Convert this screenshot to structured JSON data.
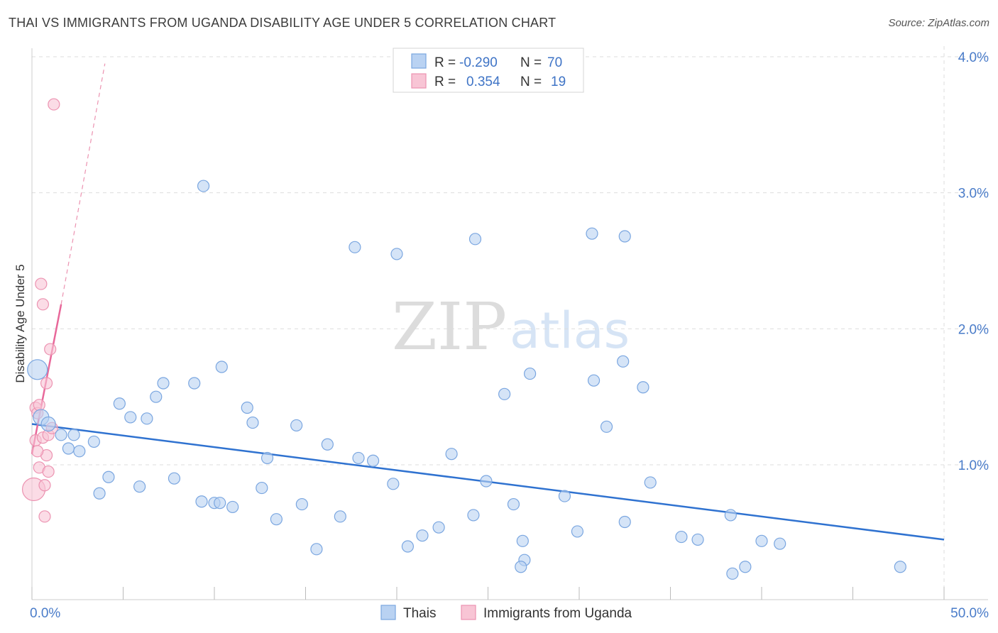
{
  "header": {
    "title": "THAI VS IMMIGRANTS FROM UGANDA DISABILITY AGE UNDER 5 CORRELATION CHART",
    "source": "Source: ZipAtlas.com"
  },
  "watermark": {
    "zip": "ZIP",
    "atlas": "atlas"
  },
  "colors": {
    "thais_fill": "#b9d2f2",
    "thais_stroke": "#7aa6e0",
    "thais_line": "#2f72d0",
    "uganda_fill": "#f8c5d5",
    "uganda_stroke": "#ec93b1",
    "uganda_line": "#e8689a",
    "grid": "#dddddd",
    "tick_text": "#4a7cc9"
  },
  "legend": {
    "rows": [
      {
        "r_label": "R =",
        "r_value": "-0.290",
        "n_label": "N =",
        "n_value": "70"
      },
      {
        "r_label": "R =",
        "r_value": "0.354",
        "n_label": "N =",
        "n_value": "19"
      }
    ]
  },
  "chart_data": {
    "type": "scatter",
    "title": "THAI VS IMMIGRANTS FROM UGANDA DISABILITY AGE UNDER 5 CORRELATION CHART",
    "xlabel": "",
    "ylabel": "Disability Age Under 5",
    "xlim": [
      0,
      50
    ],
    "ylim": [
      0,
      4.1
    ],
    "x_tick_labels": [
      "0.0%",
      "50.0%"
    ],
    "y_ticks": [
      1,
      2,
      3,
      4
    ],
    "y_tick_labels": [
      "1.0%",
      "2.0%",
      "3.0%",
      "4.0%"
    ],
    "legend_position": "bottom-center",
    "series": [
      {
        "name": "Thais",
        "r": -0.29,
        "n": 70,
        "trend": {
          "x": [
            0,
            50
          ],
          "y": [
            1.3,
            0.45
          ]
        },
        "points": [
          {
            "x": 0.3,
            "y": 1.7,
            "s": 14
          },
          {
            "x": 0.5,
            "y": 1.35,
            "s": 11
          },
          {
            "x": 0.9,
            "y": 1.3,
            "s": 10
          },
          {
            "x": 2.3,
            "y": 1.22
          },
          {
            "x": 1.6,
            "y": 1.22
          },
          {
            "x": 2.0,
            "y": 1.12
          },
          {
            "x": 2.6,
            "y": 1.1
          },
          {
            "x": 3.4,
            "y": 1.17
          },
          {
            "x": 3.7,
            "y": 0.79
          },
          {
            "x": 4.2,
            "y": 0.91
          },
          {
            "x": 4.8,
            "y": 1.45
          },
          {
            "x": 5.4,
            "y": 1.35
          },
          {
            "x": 5.9,
            "y": 0.84
          },
          {
            "x": 6.3,
            "y": 1.34
          },
          {
            "x": 6.8,
            "y": 1.5
          },
          {
            "x": 7.2,
            "y": 1.6
          },
          {
            "x": 7.8,
            "y": 0.9
          },
          {
            "x": 8.9,
            "y": 1.6
          },
          {
            "x": 9.3,
            "y": 0.73
          },
          {
            "x": 10.0,
            "y": 0.72
          },
          {
            "x": 10.4,
            "y": 1.72
          },
          {
            "x": 10.3,
            "y": 0.72
          },
          {
            "x": 11.0,
            "y": 0.69
          },
          {
            "x": 11.8,
            "y": 1.42
          },
          {
            "x": 12.1,
            "y": 1.31
          },
          {
            "x": 12.6,
            "y": 0.83
          },
          {
            "x": 12.9,
            "y": 1.05
          },
          {
            "x": 13.4,
            "y": 0.6
          },
          {
            "x": 14.5,
            "y": 1.29
          },
          {
            "x": 14.8,
            "y": 0.71
          },
          {
            "x": 15.6,
            "y": 0.38
          },
          {
            "x": 16.2,
            "y": 1.15
          },
          {
            "x": 16.9,
            "y": 0.62
          },
          {
            "x": 17.9,
            "y": 1.05
          },
          {
            "x": 18.7,
            "y": 1.03
          },
          {
            "x": 19.8,
            "y": 0.86
          },
          {
            "x": 20.6,
            "y": 0.4
          },
          {
            "x": 21.4,
            "y": 0.48
          },
          {
            "x": 22.3,
            "y": 0.54
          },
          {
            "x": 23.0,
            "y": 1.08
          },
          {
            "x": 24.2,
            "y": 0.63
          },
          {
            "x": 24.9,
            "y": 0.88
          },
          {
            "x": 25.9,
            "y": 1.52
          },
          {
            "x": 26.4,
            "y": 0.71
          },
          {
            "x": 26.9,
            "y": 0.44
          },
          {
            "x": 27.0,
            "y": 0.3
          },
          {
            "x": 27.3,
            "y": 1.67
          },
          {
            "x": 29.2,
            "y": 0.77
          },
          {
            "x": 29.9,
            "y": 0.51
          },
          {
            "x": 30.8,
            "y": 1.62
          },
          {
            "x": 31.5,
            "y": 1.28
          },
          {
            "x": 32.4,
            "y": 1.76
          },
          {
            "x": 33.5,
            "y": 1.57
          },
          {
            "x": 33.9,
            "y": 0.87
          },
          {
            "x": 35.6,
            "y": 0.47
          },
          {
            "x": 36.5,
            "y": 0.45
          },
          {
            "x": 38.3,
            "y": 0.63
          },
          {
            "x": 38.4,
            "y": 0.2
          },
          {
            "x": 39.1,
            "y": 0.25
          },
          {
            "x": 40.0,
            "y": 0.44
          },
          {
            "x": 41.0,
            "y": 0.42
          },
          {
            "x": 32.5,
            "y": 0.58
          },
          {
            "x": 26.8,
            "y": 0.25
          },
          {
            "x": 9.4,
            "y": 3.05
          },
          {
            "x": 17.7,
            "y": 2.6
          },
          {
            "x": 20.0,
            "y": 2.55
          },
          {
            "x": 24.3,
            "y": 2.66
          },
          {
            "x": 30.7,
            "y": 2.7
          },
          {
            "x": 47.6,
            "y": 0.25
          },
          {
            "x": 32.5,
            "y": 2.68
          }
        ]
      },
      {
        "name": "Immigrants from Uganda",
        "r": 0.354,
        "n": 19,
        "trend": {
          "x": [
            0,
            1.6
          ],
          "y": [
            1.08,
            2.18
          ]
        },
        "trend_extension": {
          "x": [
            1.6,
            4.0
          ],
          "y": [
            2.18,
            3.95
          ]
        },
        "points": [
          {
            "x": 0.1,
            "y": 0.82,
            "s": 16
          },
          {
            "x": 0.2,
            "y": 1.18
          },
          {
            "x": 0.2,
            "y": 1.42
          },
          {
            "x": 0.3,
            "y": 1.38
          },
          {
            "x": 0.4,
            "y": 1.44
          },
          {
            "x": 0.4,
            "y": 0.98
          },
          {
            "x": 0.5,
            "y": 2.33
          },
          {
            "x": 0.6,
            "y": 2.18
          },
          {
            "x": 0.6,
            "y": 1.2
          },
          {
            "x": 0.7,
            "y": 0.85
          },
          {
            "x": 0.7,
            "y": 0.62
          },
          {
            "x": 0.8,
            "y": 1.6
          },
          {
            "x": 0.8,
            "y": 1.07
          },
          {
            "x": 0.9,
            "y": 0.95
          },
          {
            "x": 0.9,
            "y": 1.22
          },
          {
            "x": 1.0,
            "y": 1.85
          },
          {
            "x": 1.1,
            "y": 1.27
          },
          {
            "x": 1.2,
            "y": 3.65
          },
          {
            "x": 0.3,
            "y": 1.1
          }
        ]
      }
    ]
  },
  "bottom_legend": {
    "items": [
      {
        "label": "Thais"
      },
      {
        "label": "Immigrants from Uganda"
      }
    ]
  }
}
